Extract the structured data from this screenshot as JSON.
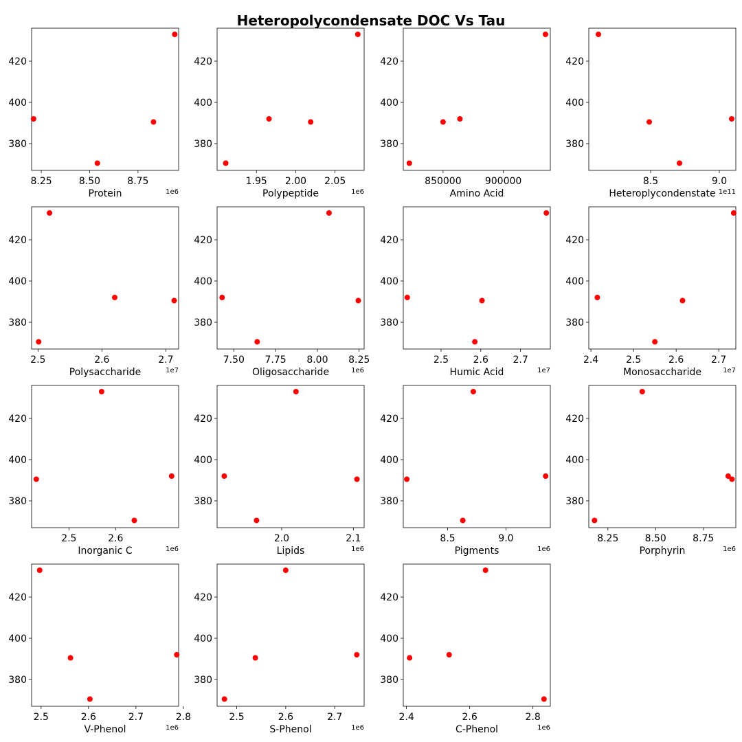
{
  "figure": {
    "title": "Heteropolycondensate DOC Vs Tau",
    "marker_color": "#ff0000"
  },
  "chart_data": [
    {
      "type": "scatter",
      "xlabel": "Protein",
      "x_multiplier": "1e6",
      "x": [
        8.21,
        8.54,
        8.83,
        8.94
      ],
      "y": [
        392,
        370.5,
        390.5,
        433
      ],
      "xlim": [
        8.2,
        8.96
      ],
      "ylim": [
        367,
        436
      ],
      "xticks": [
        8.25,
        8.5,
        8.75
      ],
      "xtick_labels": [
        "8.25",
        "8.50",
        "8.75"
      ],
      "yticks": [
        380,
        400,
        420
      ],
      "ytick_labels": [
        "380",
        "400",
        "420"
      ]
    },
    {
      "type": "scatter",
      "xlabel": "Polypeptide",
      "x_multiplier": "1e6",
      "x": [
        1.911,
        1.966,
        2.019,
        2.079
      ],
      "y": [
        370.5,
        392,
        390.5,
        433
      ],
      "xlim": [
        1.9,
        2.087
      ],
      "ylim": [
        367,
        436
      ],
      "xticks": [
        1.95,
        2.0,
        2.05
      ],
      "xtick_labels": [
        "1.95",
        "2.00",
        "2.05"
      ],
      "yticks": [
        380,
        400,
        420
      ],
      "ytick_labels": [
        "380",
        "400",
        "420"
      ]
    },
    {
      "type": "scatter",
      "xlabel": "Amino Acid",
      "x_multiplier": "",
      "x": [
        822000,
        850000,
        864000,
        935000
      ],
      "y": [
        370.5,
        390.5,
        392,
        433
      ],
      "xlim": [
        817000,
        939000
      ],
      "ylim": [
        367,
        436
      ],
      "xticks": [
        850000,
        900000
      ],
      "xtick_labels": [
        "850000",
        "900000"
      ],
      "yticks": [
        380,
        400,
        420
      ],
      "ytick_labels": [
        "380",
        "400",
        "420"
      ]
    },
    {
      "type": "scatter",
      "xlabel": "Heteroplycondenstate",
      "x_multiplier": "1e11",
      "x": [
        8.12,
        8.49,
        8.71,
        9.09
      ],
      "y": [
        433,
        390.5,
        370.5,
        392
      ],
      "xlim": [
        8.05,
        9.12
      ],
      "ylim": [
        367,
        436
      ],
      "xticks": [
        8.5,
        9.0
      ],
      "xtick_labels": [
        "8.5",
        "9.0"
      ],
      "yticks": [
        380,
        400,
        420
      ],
      "ytick_labels": [
        "380",
        "400",
        "420"
      ]
    },
    {
      "type": "scatter",
      "xlabel": "Polysaccharide",
      "x_multiplier": "1e7",
      "x": [
        2.501,
        2.518,
        2.62,
        2.713
      ],
      "y": [
        370.5,
        433,
        392,
        390.5
      ],
      "xlim": [
        2.49,
        2.72
      ],
      "ylim": [
        367,
        436
      ],
      "xticks": [
        2.5,
        2.6,
        2.7
      ],
      "xtick_labels": [
        "2.5",
        "2.6",
        "2.7"
      ],
      "yticks": [
        380,
        400,
        420
      ],
      "ytick_labels": [
        "380",
        "400",
        "420"
      ]
    },
    {
      "type": "scatter",
      "xlabel": "Oligosaccharide",
      "x_multiplier": "1e6",
      "x": [
        7.43,
        7.64,
        8.07,
        8.245
      ],
      "y": [
        392,
        370.5,
        433,
        390.5
      ],
      "xlim": [
        7.4,
        8.28
      ],
      "ylim": [
        367,
        436
      ],
      "xticks": [
        7.5,
        7.75,
        8.0,
        8.25
      ],
      "xtick_labels": [
        "7.50",
        "7.75",
        "8.00",
        "8.25"
      ],
      "yticks": [
        380,
        400,
        420
      ],
      "ytick_labels": [
        "380",
        "400",
        "420"
      ]
    },
    {
      "type": "scatter",
      "xlabel": "Humic Acid",
      "x_multiplier": "1e7",
      "x": [
        2.415,
        2.585,
        2.603,
        2.765
      ],
      "y": [
        392,
        370.5,
        390.5,
        433
      ],
      "xlim": [
        2.405,
        2.775
      ],
      "ylim": [
        367,
        436
      ],
      "xticks": [
        2.5,
        2.6,
        2.7
      ],
      "xtick_labels": [
        "2.5",
        "2.6",
        "2.7"
      ],
      "yticks": [
        380,
        400,
        420
      ],
      "ytick_labels": [
        "380",
        "400",
        "420"
      ]
    },
    {
      "type": "scatter",
      "xlabel": "Monosaccharide",
      "x_multiplier": "1e7",
      "x": [
        2.415,
        2.55,
        2.615,
        2.735
      ],
      "y": [
        392,
        370.5,
        390.5,
        433
      ],
      "xlim": [
        2.395,
        2.74
      ],
      "ylim": [
        367,
        436
      ],
      "xticks": [
        2.4,
        2.5,
        2.6,
        2.7
      ],
      "xtick_labels": [
        "2.4",
        "2.5",
        "2.6",
        "2.7"
      ],
      "yticks": [
        380,
        400,
        420
      ],
      "ytick_labels": [
        "380",
        "400",
        "420"
      ]
    },
    {
      "type": "scatter",
      "xlabel": "Inorganic C",
      "x_multiplier": "1e6",
      "x": [
        2.43,
        2.57,
        2.64,
        2.72
      ],
      "y": [
        390.5,
        433,
        370.5,
        392
      ],
      "xlim": [
        2.42,
        2.735
      ],
      "ylim": [
        367,
        436
      ],
      "xticks": [
        2.5,
        2.6
      ],
      "xtick_labels": [
        "2.5",
        "2.6"
      ],
      "yticks": [
        380,
        400,
        420
      ],
      "ytick_labels": [
        "380",
        "400",
        "420"
      ]
    },
    {
      "type": "scatter",
      "xlabel": "Lipids",
      "x_multiplier": "1e6",
      "x": [
        1.92,
        1.965,
        2.02,
        2.105
      ],
      "y": [
        392,
        370.5,
        433,
        390.5
      ],
      "xlim": [
        1.91,
        2.115
      ],
      "ylim": [
        367,
        436
      ],
      "xticks": [
        2.0,
        2.1
      ],
      "xtick_labels": [
        "2.0",
        "2.1"
      ],
      "yticks": [
        380,
        400,
        420
      ],
      "ytick_labels": [
        "380",
        "400",
        "420"
      ]
    },
    {
      "type": "scatter",
      "xlabel": "Pigments",
      "x_multiplier": "1e6",
      "x": [
        8.15,
        8.63,
        8.72,
        9.34
      ],
      "y": [
        390.5,
        370.5,
        433,
        392
      ],
      "xlim": [
        8.12,
        9.38
      ],
      "ylim": [
        367,
        436
      ],
      "xticks": [
        8.5,
        9.0
      ],
      "xtick_labels": [
        "8.5",
        "9.0"
      ],
      "yticks": [
        380,
        400,
        420
      ],
      "ytick_labels": [
        "380",
        "400",
        "420"
      ]
    },
    {
      "type": "scatter",
      "xlabel": "Porphyrin",
      "x_multiplier": "1e6",
      "x": [
        8.18,
        8.43,
        8.88,
        8.9
      ],
      "y": [
        370.5,
        433,
        392,
        390.5
      ],
      "xlim": [
        8.15,
        8.92
      ],
      "ylim": [
        367,
        436
      ],
      "xticks": [
        8.25,
        8.5,
        8.75
      ],
      "xtick_labels": [
        "8.25",
        "8.50",
        "8.75"
      ],
      "yticks": [
        380,
        400,
        420
      ],
      "ytick_labels": [
        "380",
        "400",
        "420"
      ]
    },
    {
      "type": "scatter",
      "xlabel": "V-Phenol",
      "x_multiplier": "1e6",
      "x": [
        2.497,
        2.562,
        2.603,
        2.786
      ],
      "y": [
        433,
        390.5,
        370.5,
        392
      ],
      "xlim": [
        2.48,
        2.79
      ],
      "ylim": [
        367,
        436
      ],
      "xticks": [
        2.5,
        2.6,
        2.7,
        2.8
      ],
      "xtick_labels": [
        "2.5",
        "2.6",
        "2.7",
        "2.8"
      ],
      "yticks": [
        380,
        400,
        420
      ],
      "ytick_labels": [
        "380",
        "400",
        "420"
      ]
    },
    {
      "type": "scatter",
      "xlabel": "S-Phenol",
      "x_multiplier": "1e6",
      "x": [
        2.475,
        2.538,
        2.6,
        2.745
      ],
      "y": [
        370.5,
        390.5,
        433,
        392
      ],
      "xlim": [
        2.46,
        2.76
      ],
      "ylim": [
        367,
        436
      ],
      "xticks": [
        2.5,
        2.6,
        2.7
      ],
      "xtick_labels": [
        "2.5",
        "2.6",
        "2.7"
      ],
      "yticks": [
        380,
        400,
        420
      ],
      "ytick_labels": [
        "380",
        "400",
        "420"
      ]
    },
    {
      "type": "scatter",
      "xlabel": "C-Phenol",
      "x_multiplier": "1e6",
      "x": [
        2.41,
        2.535,
        2.65,
        2.835
      ],
      "y": [
        390.5,
        392,
        433,
        370.5
      ],
      "xlim": [
        2.39,
        2.855
      ],
      "ylim": [
        367,
        436
      ],
      "xticks": [
        2.4,
        2.6,
        2.8
      ],
      "xtick_labels": [
        "2.4",
        "2.6",
        "2.8"
      ],
      "yticks": [
        380,
        400,
        420
      ],
      "ytick_labels": [
        "380",
        "400",
        "420"
      ]
    }
  ]
}
